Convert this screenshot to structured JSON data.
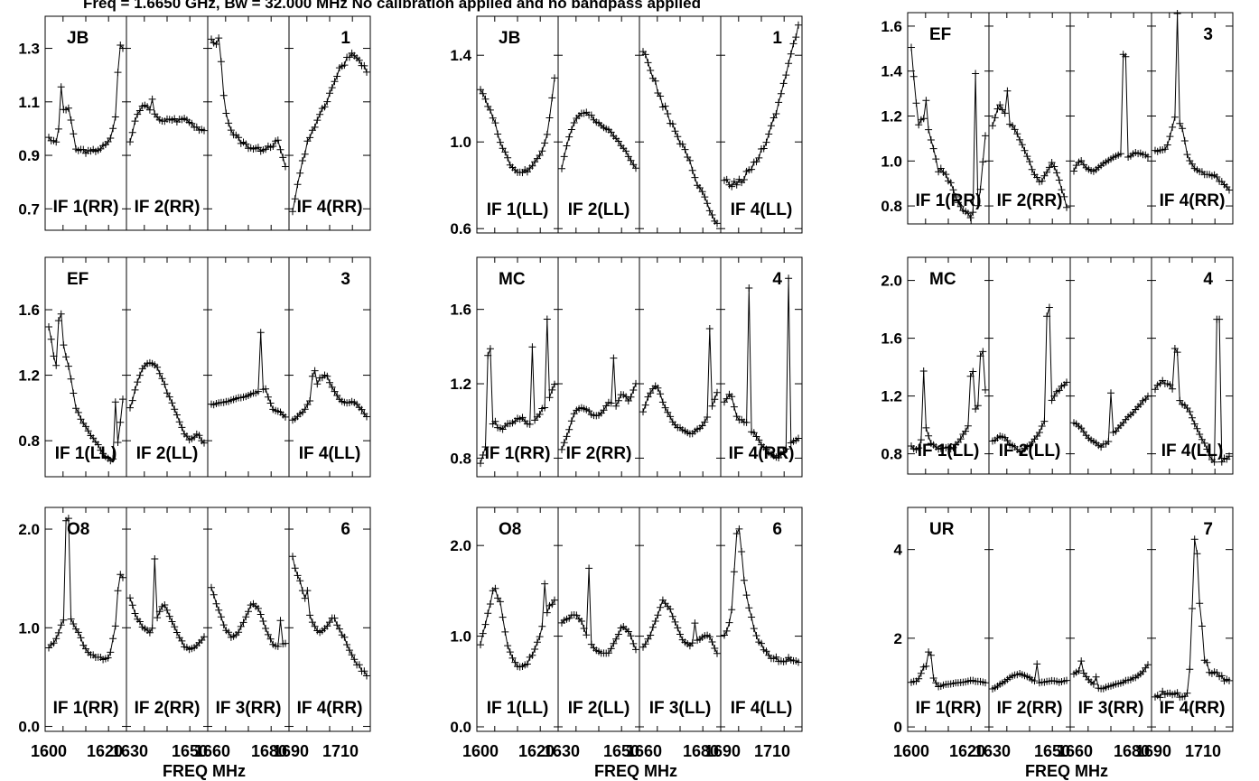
{
  "title": "Freq = 1.6650 GHz, Bw = 32.000 MHz   No calibration applied and no bandpass applied",
  "x_axis": {
    "label": "FREQ MHz",
    "tick_labels": [
      "1600",
      "1620",
      "1630",
      "1650",
      "1660",
      "1680",
      "1690",
      "1710"
    ]
  },
  "chart_data": {
    "type": "line",
    "panels": [
      {
        "station": "JB",
        "ant": "1",
        "y_ticks": [
          "0.7",
          "0.9",
          "1.1",
          "1.3"
        ],
        "ylim": [
          0.62,
          1.42
        ],
        "if_labels": [
          "IF 1(RR)",
          "IF 2(RR)",
          "",
          "IF 4(RR)"
        ],
        "series": [
          {
            "base": [
              0.97,
              0.94,
              1.06,
              1.08,
              0.92,
              0.92,
              0.91,
              0.92,
              0.93,
              0.95,
              1.05,
              1.3
            ],
            "spikes": [
              [
                0.18,
                0.12
              ],
              [
                0.95,
                0.1
              ]
            ]
          },
          {
            "base": [
              0.95,
              1.05,
              1.09,
              1.07,
              1.04,
              1.03,
              1.04,
              1.03,
              1.04,
              1.02,
              1.0,
              0.99
            ],
            "spikes": [
              [
                0.3,
                0.05
              ]
            ]
          },
          {
            "base": [
              1.33,
              1.3,
              1.08,
              0.99,
              0.96,
              0.94,
              0.93,
              0.92,
              0.93,
              0.94,
              0.95,
              0.85
            ],
            "spikes": [
              [
                0.12,
                0.06
              ]
            ]
          },
          {
            "base": [
              0.68,
              0.82,
              0.93,
              1.0,
              1.04,
              1.1,
              1.16,
              1.22,
              1.26,
              1.28,
              1.24,
              1.22
            ],
            "spikes": []
          }
        ]
      },
      {
        "station": "JB",
        "ant": "1",
        "y_ticks": [
          "0.6",
          "1.0",
          "1.4"
        ],
        "ylim": [
          0.58,
          1.58
        ],
        "if_labels": [
          "IF 1(LL)",
          "IF 2(LL)",
          "",
          "IF 4(LL)"
        ],
        "series": [
          {
            "base": [
              1.25,
              1.18,
              1.1,
              1.0,
              0.92,
              0.87,
              0.86,
              0.87,
              0.9,
              0.95,
              1.05,
              1.3
            ],
            "spikes": []
          },
          {
            "base": [
              0.88,
              1.02,
              1.1,
              1.14,
              1.13,
              1.1,
              1.07,
              1.05,
              1.02,
              0.98,
              0.93,
              0.88
            ],
            "spikes": []
          },
          {
            "base": [
              1.42,
              1.35,
              1.25,
              1.17,
              1.1,
              1.03,
              0.97,
              0.9,
              0.82,
              0.75,
              0.68,
              0.62
            ],
            "spikes": []
          },
          {
            "base": [
              0.82,
              0.8,
              0.81,
              0.84,
              0.88,
              0.93,
              0.99,
              1.07,
              1.17,
              1.3,
              1.42,
              1.53
            ],
            "spikes": []
          }
        ]
      },
      {
        "station": "EF",
        "ant": "3",
        "y_ticks": [
          "0.8",
          "1.0",
          "1.2",
          "1.4",
          "1.6"
        ],
        "ylim": [
          0.72,
          1.66
        ],
        "if_labels": [
          "IF 1(RR)",
          "IF 2(RR)",
          "",
          "IF 4(RR)"
        ],
        "series": [
          {
            "base": [
              1.5,
              1.15,
              1.2,
              1.08,
              0.96,
              0.95,
              0.88,
              0.8,
              0.77,
              0.76,
              0.8,
              1.1
            ],
            "spikes": [
              [
                0.2,
                0.08
              ],
              [
                0.88,
                0.6
              ]
            ]
          },
          {
            "base": [
              1.15,
              1.25,
              1.2,
              1.15,
              1.1,
              1.02,
              0.96,
              0.9,
              0.95,
              1.0,
              0.9,
              0.8
            ],
            "spikes": [
              [
                0.2,
                0.12
              ]
            ]
          },
          {
            "base": [
              0.96,
              1.0,
              0.97,
              0.95,
              0.98,
              1.0,
              1.02,
              1.03,
              1.01,
              1.04,
              1.03,
              1.02
            ],
            "spikes": [
              [
                0.68,
                0.45
              ]
            ]
          },
          {
            "base": [
              1.05,
              1.04,
              1.08,
              1.2,
              1.15,
              1.0,
              0.96,
              0.95,
              0.94,
              0.93,
              0.9,
              0.87
            ],
            "spikes": [
              [
                0.3,
                0.5
              ]
            ]
          }
        ]
      },
      {
        "station": "EF",
        "ant": "3",
        "y_ticks": [
          "0.8",
          "1.2",
          "1.6"
        ],
        "ylim": [
          0.58,
          1.92
        ],
        "if_labels": [
          "IF 1(LL)",
          "IF 2(LL)",
          "",
          "IF 4(LL)"
        ],
        "series": [
          {
            "base": [
              1.5,
              1.25,
              1.4,
              1.25,
              1.0,
              0.92,
              0.85,
              0.78,
              0.72,
              0.68,
              0.7,
              1.05
            ],
            "spikes": [
              [
                0.15,
                0.2
              ],
              [
                0.9,
                0.35
              ]
            ]
          },
          {
            "base": [
              1.0,
              1.15,
              1.25,
              1.28,
              1.25,
              1.15,
              1.05,
              0.95,
              0.85,
              0.8,
              0.85,
              0.78
            ],
            "spikes": []
          },
          {
            "base": [
              1.02,
              1.03,
              1.04,
              1.05,
              1.06,
              1.07,
              1.08,
              1.1,
              1.12,
              1.0,
              0.98,
              0.95
            ],
            "spikes": [
              [
                0.66,
                0.35
              ]
            ]
          },
          {
            "base": [
              0.92,
              0.96,
              1.0,
              1.08,
              1.18,
              1.2,
              1.12,
              1.05,
              1.03,
              1.04,
              1.0,
              0.95
            ],
            "spikes": [
              [
                0.28,
                0.12
              ]
            ]
          }
        ]
      },
      {
        "station": "MC",
        "ant": "4",
        "y_ticks": [
          "0.8",
          "1.2",
          "1.6"
        ],
        "ylim": [
          0.7,
          1.88
        ],
        "if_labels": [
          "IF 1(RR)",
          "IF 2(RR)",
          "",
          "IF 4(RR)"
        ],
        "series": [
          {
            "base": [
              0.78,
              0.9,
              1.0,
              0.95,
              0.98,
              1.0,
              1.02,
              0.98,
              1.0,
              1.05,
              1.1,
              1.2
            ],
            "spikes": [
              [
                0.12,
                0.45
              ],
              [
                0.7,
                0.4
              ],
              [
                0.9,
                0.45
              ]
            ]
          },
          {
            "base": [
              0.85,
              0.95,
              1.05,
              1.08,
              1.05,
              1.02,
              1.05,
              1.1,
              1.08,
              1.15,
              1.1,
              1.2
            ],
            "spikes": [
              [
                0.7,
                0.25
              ]
            ]
          },
          {
            "base": [
              1.05,
              1.15,
              1.2,
              1.1,
              1.02,
              0.97,
              0.95,
              0.93,
              0.95,
              0.98,
              1.05,
              1.15
            ],
            "spikes": [
              [
                0.9,
                0.45
              ]
            ]
          },
          {
            "base": [
              1.1,
              1.15,
              1.0,
              1.0,
              0.95,
              0.9,
              0.85,
              0.82,
              0.8,
              0.85,
              0.88,
              0.9
            ],
            "spikes": [
              [
                0.32,
                0.75
              ],
              [
                0.88,
                0.9
              ]
            ]
          }
        ]
      },
      {
        "station": "MC",
        "ant": "4",
        "y_ticks": [
          "0.8",
          "1.2",
          "1.6",
          "2.0"
        ],
        "ylim": [
          0.66,
          2.16
        ],
        "if_labels": [
          "IF 1(LL)",
          "IF 2(LL)",
          "",
          "IF 4(LL)"
        ],
        "series": [
          {
            "base": [
              0.85,
              0.82,
              1.0,
              0.86,
              0.84,
              0.85,
              0.83,
              0.88,
              0.95,
              1.05,
              1.15,
              1.25
            ],
            "spikes": [
              [
                0.18,
                0.4
              ],
              [
                0.82,
                0.3
              ],
              [
                0.95,
                0.3
              ]
            ]
          },
          {
            "base": [
              0.88,
              0.92,
              0.9,
              0.85,
              0.82,
              0.84,
              0.88,
              0.95,
              1.05,
              1.2,
              1.25,
              1.3
            ],
            "spikes": [
              [
                0.75,
                0.7
              ]
            ]
          },
          {
            "base": [
              1.02,
              0.98,
              0.92,
              0.88,
              0.85,
              0.88,
              0.95,
              1.0,
              1.05,
              1.1,
              1.15,
              1.2
            ],
            "spikes": [
              [
                0.5,
                0.3
              ]
            ]
          },
          {
            "base": [
              1.25,
              1.3,
              1.28,
              1.22,
              1.15,
              1.1,
              1.0,
              0.9,
              0.8,
              0.72,
              0.75,
              0.78
            ],
            "spikes": [
              [
                0.28,
                0.3
              ],
              [
                0.85,
                1.0
              ]
            ]
          }
        ]
      },
      {
        "station": "O8",
        "ant": "6",
        "y_ticks": [
          "0.0",
          "1.0",
          "2.0"
        ],
        "ylim": [
          -0.05,
          2.22
        ],
        "if_labels": [
          "IF 1(RR)",
          "IF 2(RR)",
          "IF 3(RR)",
          "IF 4(RR)"
        ],
        "series": [
          {
            "base": [
              0.8,
              0.88,
              1.05,
              1.12,
              1.0,
              0.85,
              0.75,
              0.7,
              0.68,
              0.7,
              1.05,
              1.5
            ],
            "spikes": [
              [
                0.25,
                1.0
              ],
              [
                0.95,
                0.2
              ]
            ]
          },
          {
            "base": [
              1.3,
              1.1,
              1.0,
              0.95,
              1.1,
              1.25,
              1.1,
              0.95,
              0.82,
              0.78,
              0.82,
              0.9
            ],
            "spikes": [
              [
                0.32,
                0.65
              ]
            ]
          },
          {
            "base": [
              1.4,
              1.2,
              1.0,
              0.9,
              0.95,
              1.1,
              1.25,
              1.2,
              1.0,
              0.85,
              0.8,
              0.85
            ],
            "spikes": [
              [
                0.92,
                0.25
              ]
            ]
          },
          {
            "base": [
              1.7,
              1.5,
              1.25,
              1.05,
              0.95,
              1.0,
              1.1,
              1.0,
              0.85,
              0.7,
              0.6,
              0.52
            ],
            "spikes": [
              [
                0.2,
                0.15
              ]
            ]
          }
        ]
      },
      {
        "station": "O8",
        "ant": "6",
        "y_ticks": [
          "0.0",
          "1.0",
          "2.0"
        ],
        "ylim": [
          -0.05,
          2.42
        ],
        "if_labels": [
          "IF 1(LL)",
          "IF 2(LL)",
          "IF 3(LL)",
          "IF 4(LL)"
        ],
        "series": [
          {
            "base": [
              0.92,
              1.2,
              1.55,
              1.35,
              0.9,
              0.7,
              0.65,
              0.7,
              0.85,
              1.05,
              1.3,
              1.4
            ],
            "spikes": [
              [
                0.88,
                0.4
              ]
            ]
          },
          {
            "base": [
              1.15,
              1.2,
              1.25,
              1.15,
              0.95,
              0.85,
              0.8,
              0.82,
              0.95,
              1.12,
              1.05,
              0.85
            ],
            "spikes": [
              [
                0.38,
                0.8
              ]
            ]
          },
          {
            "base": [
              0.88,
              1.0,
              1.2,
              1.4,
              1.3,
              1.1,
              0.95,
              0.9,
              0.95,
              1.0,
              1.0,
              0.8
            ],
            "spikes": [
              [
                0.7,
                0.2
              ]
            ]
          },
          {
            "base": [
              1.0,
              1.2,
              2.3,
              1.6,
              1.2,
              0.95,
              0.85,
              0.78,
              0.74,
              0.75,
              0.75,
              0.74
            ],
            "spikes": []
          }
        ]
      },
      {
        "station": "UR",
        "ant": "7",
        "y_ticks": [
          "0",
          "2",
          "4"
        ],
        "ylim": [
          -0.1,
          4.95
        ],
        "if_labels": [
          "IF 1(RR)",
          "IF 2(RR)",
          "IF 3(RR)",
          "IF 4(RR)"
        ],
        "series": [
          {
            "base": [
              1.0,
              1.05,
              1.4,
              1.2,
              0.9,
              0.95,
              0.98,
              1.0,
              1.02,
              1.05,
              1.02,
              1.0
            ],
            "spikes": [
              [
                0.25,
                0.4
              ]
            ]
          },
          {
            "base": [
              0.85,
              0.95,
              1.05,
              1.15,
              1.2,
              1.15,
              1.05,
              1.0,
              1.02,
              1.05,
              1.0,
              1.05
            ],
            "spikes": [
              [
                0.6,
                0.4
              ]
            ]
          },
          {
            "base": [
              1.2,
              1.3,
              1.1,
              0.95,
              0.85,
              0.9,
              0.95,
              1.0,
              1.05,
              1.1,
              1.2,
              1.4
            ],
            "spikes": [
              [
                0.1,
                0.2
              ],
              [
                0.3,
                0.2
              ]
            ]
          },
          {
            "base": [
              0.7,
              0.75,
              0.7,
              0.72,
              0.75,
              0.8,
              4.7,
              1.6,
              1.3,
              1.2,
              1.1,
              1.0
            ],
            "spikes": [
              [
                0.62,
                0.5
              ]
            ]
          }
        ]
      }
    ]
  }
}
